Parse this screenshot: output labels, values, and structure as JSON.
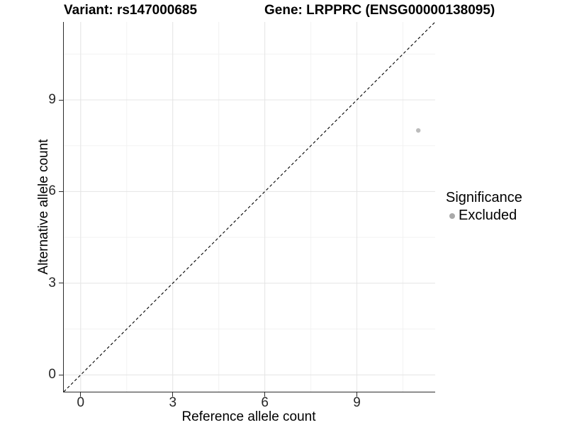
{
  "header": {
    "title_left": "Variant: rs147000685",
    "title_right": "Gene: LRPPRC (ENSG00000138095)"
  },
  "chart_data": {
    "type": "scatter",
    "title": "Variant: rs147000685 — Gene: LRPPRC (ENSG00000138095)",
    "xlabel": "Reference allele count",
    "ylabel": "Alternative allele count",
    "xlim": [
      -0.55,
      11.55
    ],
    "ylim": [
      -0.55,
      11.55
    ],
    "x_ticks": [
      0,
      3,
      6,
      9
    ],
    "y_ticks": [
      0,
      3,
      6,
      9
    ],
    "x_minor_gridlines": [
      1.5,
      4.5,
      7.5,
      10.5
    ],
    "y_minor_gridlines": [
      1.5,
      4.5,
      7.5,
      10.5
    ],
    "grid": "major-and-minor",
    "reference_line": {
      "slope": 1,
      "intercept": 0,
      "style": "dashed",
      "color": "#000000"
    },
    "series": [
      {
        "name": "Excluded",
        "color": "#bcbcbc",
        "points": [
          {
            "x": 11,
            "y": 8
          }
        ]
      }
    ],
    "legend": {
      "title": "Significance",
      "position": "right",
      "items": [
        {
          "label": "Excluded",
          "color": "#a9a9a9"
        }
      ]
    }
  },
  "colors": {
    "background": "#ffffff",
    "grid_major": "#e4e4e4",
    "grid_minor": "#f2f2f2",
    "axis_line": "#2b2b2b",
    "tick_label": "#262626",
    "point": "#bcbcbc",
    "legend_swatch": "#a9a9a9"
  }
}
